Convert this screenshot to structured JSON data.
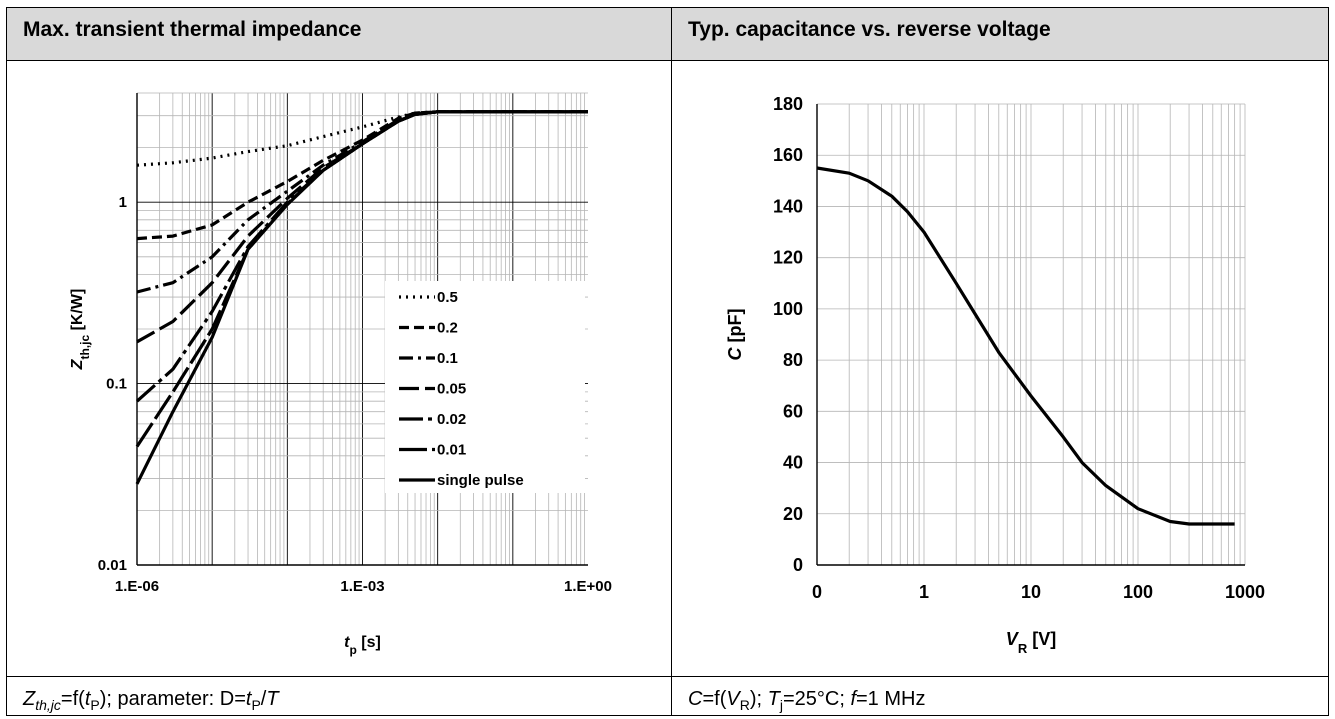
{
  "panels": [
    {
      "header": "Max. transient thermal impedance",
      "footer_parts": [
        {
          "t": "Z",
          "i": true
        },
        {
          "t": "th,jc",
          "i": true,
          "sub": true
        },
        {
          "t": "=f("
        },
        {
          "t": "t",
          "i": true
        },
        {
          "t": "P",
          "sub": true
        },
        {
          "t": "); parameter: D="
        },
        {
          "t": "t",
          "i": true
        },
        {
          "t": "P",
          "sub": true
        },
        {
          "t": "/"
        },
        {
          "t": "T",
          "i": true
        }
      ]
    },
    {
      "header": "Typ. capacitance vs. reverse voltage",
      "footer_parts": [
        {
          "t": "C",
          "i": true
        },
        {
          "t": "=f("
        },
        {
          "t": "V",
          "i": true
        },
        {
          "t": "R",
          "sub": true
        },
        {
          "t": "); "
        },
        {
          "t": "T",
          "i": true
        },
        {
          "t": "j",
          "sub": true
        },
        {
          "t": "=25°C; "
        },
        {
          "t": "f",
          "i": true
        },
        {
          "t": "=1 MHz"
        }
      ]
    }
  ],
  "chart_data": [
    {
      "type": "line",
      "x_scale": "log",
      "y_scale": "log",
      "xlim": [
        1e-06,
        1
      ],
      "ylim": [
        0.01,
        4
      ],
      "x_ticks": [
        {
          "v": 1e-06,
          "label": "1.E-06"
        },
        {
          "v": 0.001,
          "label": "1.E-03"
        },
        {
          "v": 1,
          "label": "1.E+00"
        }
      ],
      "y_ticks": [
        {
          "v": 0.01,
          "label": "0.01"
        },
        {
          "v": 0.1,
          "label": "0.1"
        },
        {
          "v": 1,
          "label": "1"
        }
      ],
      "xlabel_parts": [
        {
          "t": "t",
          "i": true
        },
        {
          "t": "p",
          "sub": true
        },
        {
          "t": " [s]"
        }
      ],
      "ylabel_parts": [
        {
          "t": "Z",
          "i": true
        },
        {
          "t": "th,jc",
          "sub": true
        },
        {
          "t": " [K/W]"
        }
      ],
      "grid": true,
      "legend_position": "center-right",
      "series": [
        {
          "name": "0.5",
          "dash": "2,5",
          "x": [
            1e-06,
            3e-06,
            1e-05,
            3e-05,
            0.0001,
            0.0003,
            0.001,
            0.003,
            0.005,
            0.01,
            1
          ],
          "y": [
            1.6,
            1.65,
            1.75,
            1.9,
            2.05,
            2.3,
            2.6,
            2.95,
            3.1,
            3.15,
            3.15
          ]
        },
        {
          "name": "0.2",
          "dash": "10,5",
          "x": [
            1e-06,
            3e-06,
            1e-05,
            3e-05,
            0.0001,
            0.0003,
            0.001,
            0.003,
            0.005,
            0.01,
            1
          ],
          "y": [
            0.63,
            0.65,
            0.75,
            1.0,
            1.3,
            1.7,
            2.2,
            2.9,
            3.1,
            3.15,
            3.15
          ]
        },
        {
          "name": "0.1",
          "dash": "14,5,3,5",
          "x": [
            1e-06,
            3e-06,
            1e-05,
            3e-05,
            0.0001,
            0.0003,
            0.001,
            0.003,
            0.005,
            0.01,
            1
          ],
          "y": [
            0.32,
            0.36,
            0.5,
            0.8,
            1.15,
            1.6,
            2.15,
            2.85,
            3.1,
            3.15,
            3.15
          ]
        },
        {
          "name": "0.05",
          "dash": "20,6",
          "x": [
            1e-06,
            3e-06,
            1e-05,
            3e-05,
            0.0001,
            0.0003,
            0.001,
            0.003,
            0.005,
            0.01,
            1
          ],
          "y": [
            0.17,
            0.22,
            0.36,
            0.65,
            1.05,
            1.55,
            2.1,
            2.8,
            3.05,
            3.15,
            3.15
          ]
        },
        {
          "name": "0.02",
          "dash": "24,5,4,5",
          "x": [
            1e-06,
            3e-06,
            1e-05,
            3e-05,
            0.0001,
            0.0003,
            0.001,
            0.003,
            0.005,
            0.01,
            1
          ],
          "y": [
            0.08,
            0.12,
            0.25,
            0.57,
            1.0,
            1.5,
            2.1,
            2.8,
            3.05,
            3.15,
            3.15
          ]
        },
        {
          "name": "0.01",
          "dash": "28,5",
          "x": [
            1e-06,
            3e-06,
            1e-05,
            3e-05,
            0.0001,
            0.0003,
            0.001,
            0.003,
            0.005,
            0.01,
            1
          ],
          "y": [
            0.045,
            0.09,
            0.2,
            0.55,
            0.98,
            1.5,
            2.1,
            2.8,
            3.05,
            3.15,
            3.15
          ]
        },
        {
          "name": "single pulse",
          "dash": "",
          "x": [
            1e-06,
            3e-06,
            1e-05,
            3e-05,
            0.0001,
            0.0003,
            0.001,
            0.003,
            0.005,
            0.01,
            1
          ],
          "y": [
            0.028,
            0.07,
            0.18,
            0.55,
            0.97,
            1.5,
            2.1,
            2.8,
            3.05,
            3.15,
            3.15
          ]
        }
      ]
    },
    {
      "type": "line",
      "x_scale": "log",
      "y_scale": "linear",
      "xlim": [
        0.1,
        1000
      ],
      "ylim": [
        0,
        180
      ],
      "x_ticks": [
        {
          "v": 0.1,
          "label": "0"
        },
        {
          "v": 1,
          "label": "1"
        },
        {
          "v": 10,
          "label": "10"
        },
        {
          "v": 100,
          "label": "100"
        },
        {
          "v": 1000,
          "label": "1000"
        }
      ],
      "y_ticks": [
        {
          "v": 0,
          "label": "0"
        },
        {
          "v": 20,
          "label": "20"
        },
        {
          "v": 40,
          "label": "40"
        },
        {
          "v": 60,
          "label": "60"
        },
        {
          "v": 80,
          "label": "80"
        },
        {
          "v": 100,
          "label": "100"
        },
        {
          "v": 120,
          "label": "120"
        },
        {
          "v": 140,
          "label": "140"
        },
        {
          "v": 160,
          "label": "160"
        },
        {
          "v": 180,
          "label": "180"
        }
      ],
      "xlabel_parts": [
        {
          "t": "V",
          "i": true
        },
        {
          "t": "R",
          "sub": true
        },
        {
          "t": " [V]"
        }
      ],
      "ylabel_parts": [
        {
          "t": "C",
          "i": true
        },
        {
          "t": " [pF]"
        }
      ],
      "grid": true,
      "series": [
        {
          "x": [
            0.1,
            0.2,
            0.3,
            0.5,
            0.7,
            1,
            2,
            3,
            5,
            10,
            20,
            30,
            50,
            100,
            200,
            300,
            500,
            800
          ],
          "y": [
            155,
            153,
            150,
            144,
            138,
            130,
            110,
            98,
            83,
            66,
            50,
            40,
            31,
            22,
            17,
            16,
            16,
            16
          ]
        }
      ]
    }
  ]
}
